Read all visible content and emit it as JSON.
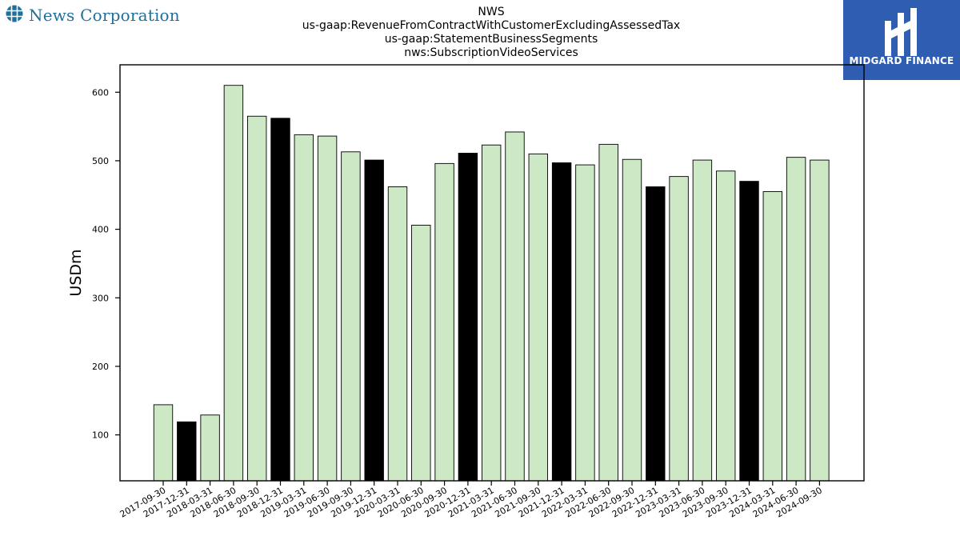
{
  "header": {
    "left_logo_text": "News Corporation",
    "left_logo_icon": "globe-icon",
    "right_logo_text": "MIDGARD FINANCE",
    "right_logo_icon": "midgard-mark-icon",
    "right_logo_bg": "#2f5db1"
  },
  "chart_data": {
    "type": "bar",
    "title_lines": [
      "NWS",
      "us-gaap:RevenueFromContractWithCustomerExcludingAssessedTax",
      "us-gaap:StatementBusinessSegments",
      "nws:SubscriptionVideoServices"
    ],
    "xlabel": "",
    "ylabel": "USDm",
    "ylim": [
      33,
      640
    ],
    "yticks": [
      100,
      200,
      300,
      400,
      500,
      600
    ],
    "grid": false,
    "categories": [
      "2017-09-30",
      "2017-12-31",
      "2018-03-31",
      "2018-06-30",
      "2018-09-30",
      "2018-12-31",
      "2019-03-31",
      "2019-06-30",
      "2019-09-30",
      "2019-12-31",
      "2020-03-31",
      "2020-06-30",
      "2020-09-30",
      "2020-12-31",
      "2021-03-31",
      "2021-06-30",
      "2021-09-30",
      "2021-12-31",
      "2022-03-31",
      "2022-06-30",
      "2022-09-30",
      "2022-12-31",
      "2023-03-31",
      "2023-06-30",
      "2023-09-30",
      "2023-12-31",
      "2024-03-31",
      "2024-06-30",
      "2024-09-30"
    ],
    "values": [
      144,
      119,
      129,
      610,
      565,
      562,
      538,
      536,
      513,
      501,
      462,
      406,
      496,
      511,
      523,
      542,
      510,
      497,
      494,
      524,
      502,
      462,
      477,
      501,
      485,
      470,
      455,
      505,
      501
    ],
    "highlight": [
      false,
      true,
      false,
      false,
      false,
      true,
      false,
      false,
      false,
      true,
      false,
      false,
      false,
      true,
      false,
      false,
      false,
      true,
      false,
      false,
      false,
      true,
      false,
      false,
      false,
      true,
      false,
      false,
      false
    ],
    "colors": {
      "normal": "#cce8c4",
      "highlight": "#000000",
      "edge": "#000000"
    }
  }
}
